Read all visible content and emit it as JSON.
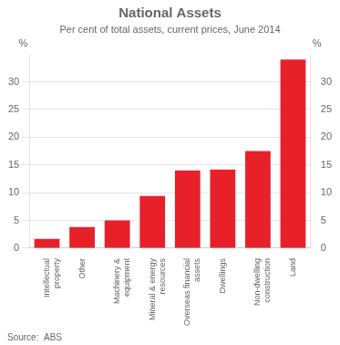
{
  "chart_data": {
    "type": "bar",
    "title": "National Assets",
    "subtitle": "Per cent of total assets, current prices, June 2014",
    "source": "Source:  ABS",
    "ylabel": "%",
    "y2label": "%",
    "categories": [
      "Intellectual\nproperty",
      "Other",
      "Machinery &\nequipment",
      "Mineral & energy\nresources",
      "Overseas financial\nassets",
      "Dwellings",
      "Non-dwelling\nconstruction",
      "Land"
    ],
    "values": [
      1.7,
      3.8,
      5.0,
      9.4,
      14.0,
      14.2,
      17.5,
      34.0
    ],
    "color": "#e8202a",
    "ylim": [
      0,
      35
    ],
    "yticks": [
      0,
      5,
      10,
      15,
      20,
      25,
      30
    ],
    "y2lim": [
      0,
      35
    ],
    "y2ticks": [
      0,
      5,
      10,
      15,
      20,
      25,
      30
    ],
    "grid": true
  }
}
